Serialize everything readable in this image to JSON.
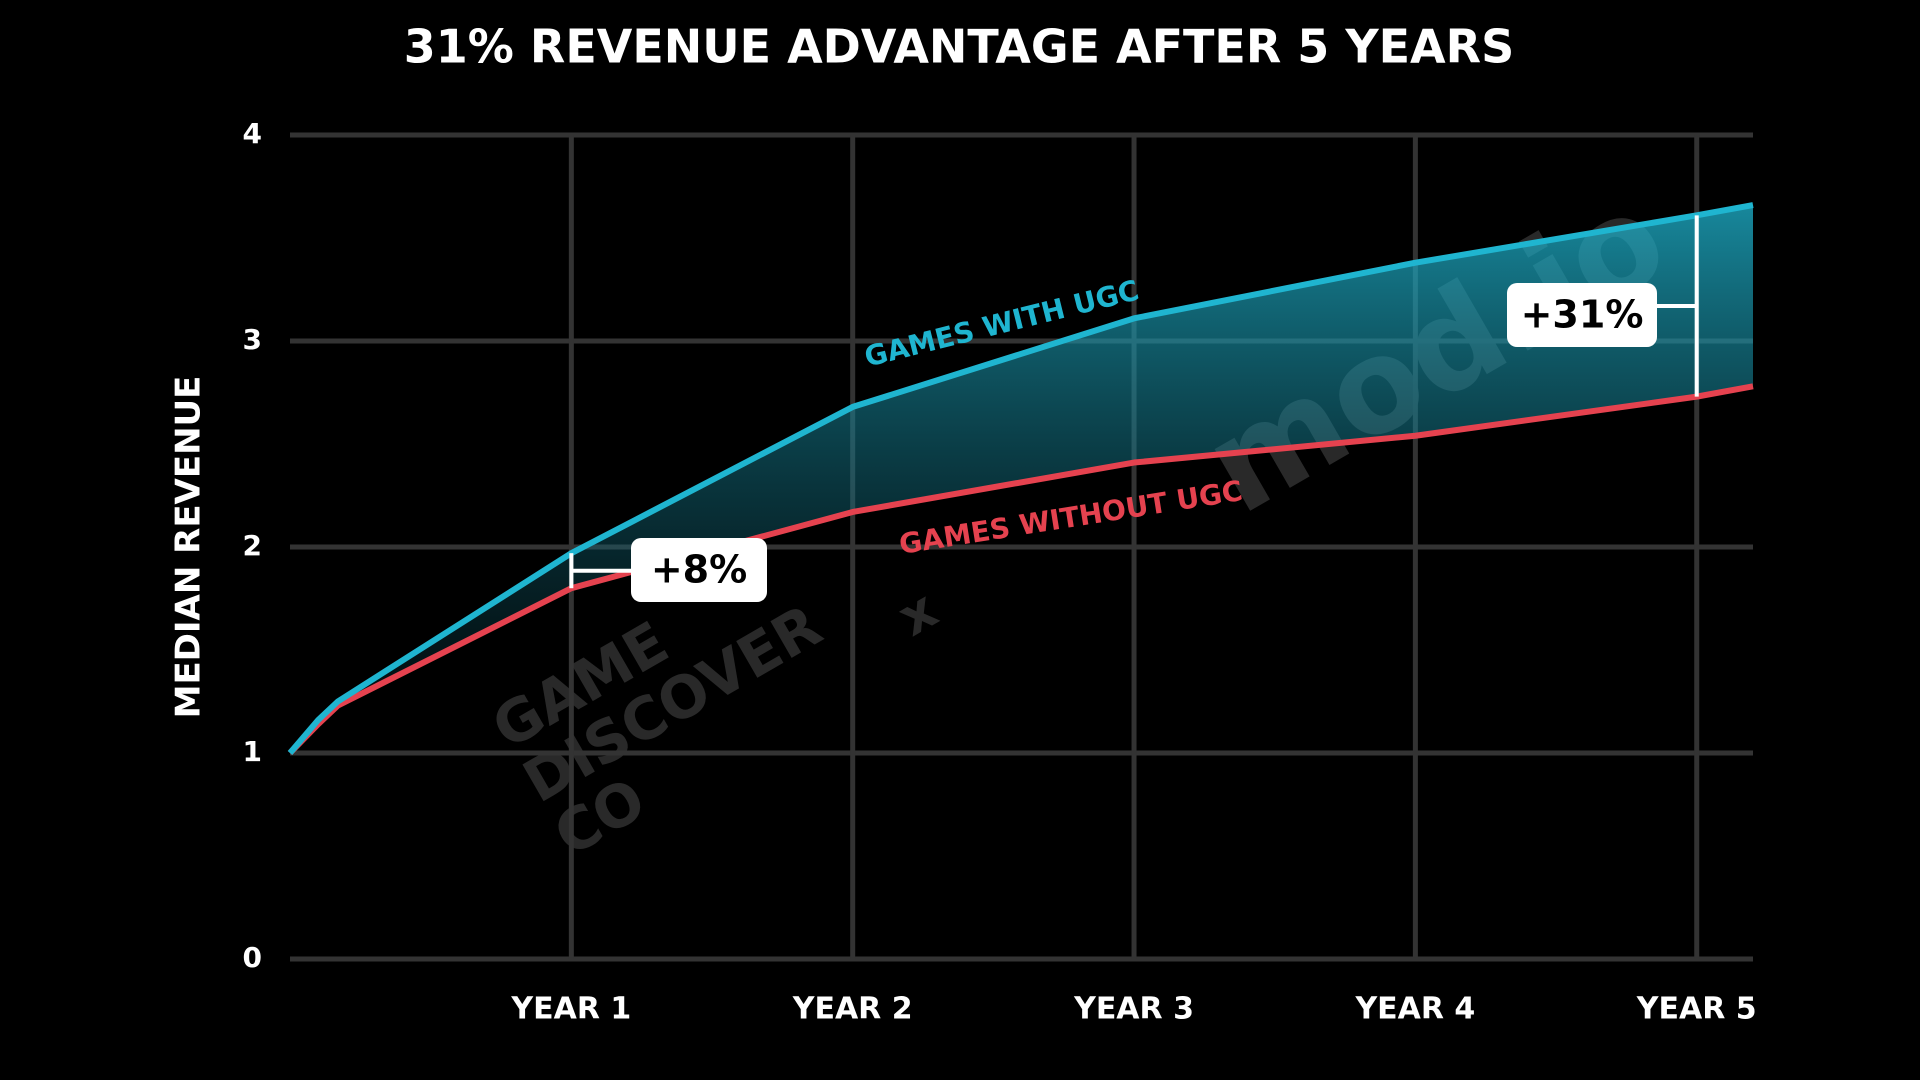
{
  "chart_data": {
    "type": "line",
    "title": "31% REVENUE ADVANTAGE AFTER 5 YEARS",
    "y_label": "MEDIAN REVENUE",
    "x": [
      0,
      0.1,
      0.17,
      1,
      2,
      3,
      4,
      5,
      5.2
    ],
    "series": [
      {
        "name": "GAMES WITH UGC",
        "color": "#1fb5d0",
        "values": [
          1.0,
          1.16,
          1.25,
          1.97,
          2.68,
          3.11,
          3.38,
          3.61,
          3.66
        ]
      },
      {
        "name": "GAMES WITHOUT UGC",
        "color": "#e5424f",
        "values": [
          1.0,
          1.14,
          1.23,
          1.8,
          2.17,
          2.41,
          2.54,
          2.73,
          2.78
        ]
      }
    ],
    "xlim": [
      0,
      5.2
    ],
    "xticks": [
      {
        "value": 1,
        "label": "YEAR 1"
      },
      {
        "value": 2,
        "label": "YEAR 2"
      },
      {
        "value": 3,
        "label": "YEAR 3"
      },
      {
        "value": 4,
        "label": "YEAR 4"
      },
      {
        "value": 5,
        "label": "YEAR 5"
      }
    ],
    "ylim": [
      0,
      4
    ],
    "yticks": [
      0,
      1,
      2,
      3,
      4
    ],
    "grid": true,
    "annotations": [
      "+8%",
      "+31%"
    ],
    "watermarks": [
      "GAME",
      "DISCOVER",
      "CO",
      "x",
      "mod.io"
    ]
  }
}
